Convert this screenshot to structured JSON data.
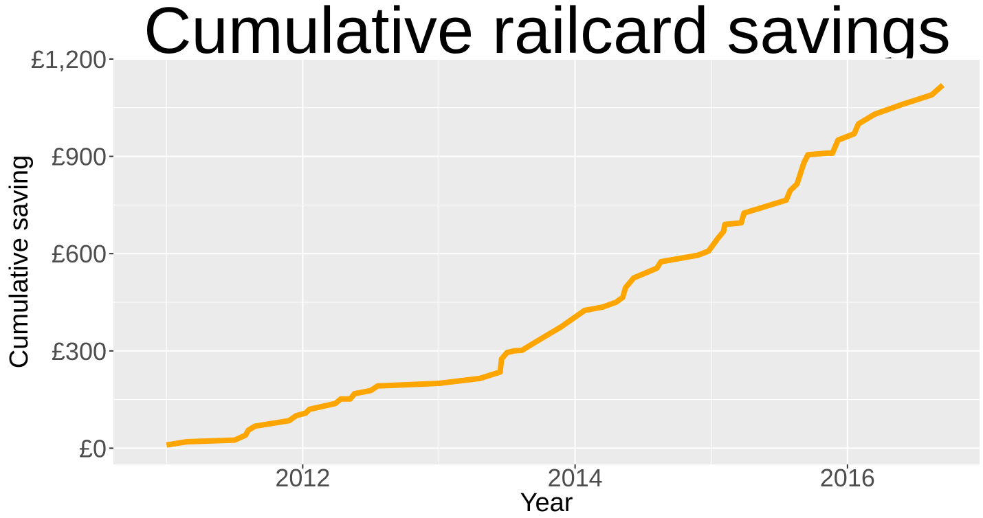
{
  "chart_data": {
    "type": "line",
    "title": "Cumulative railcard savings",
    "xlabel": "Year",
    "ylabel": "Cumulative saving",
    "xlim": [
      2010.61,
      2016.97
    ],
    "ylim": [
      -50,
      1200
    ],
    "x_ticks": [
      2012,
      2014,
      2016
    ],
    "x_tick_labels": [
      "2012",
      "2014",
      "2016"
    ],
    "y_ticks": [
      0,
      300,
      600,
      900,
      1200
    ],
    "y_tick_labels": [
      "£0",
      "£300",
      "£600",
      "£900",
      "£1,200"
    ],
    "grid": true,
    "legend": "none",
    "colors": {
      "line": "#FFA500",
      "panel": "#EBEBEB",
      "grid": "#FFFFFF",
      "tick_text": "#4D4D4D"
    },
    "series": [
      {
        "x": [
          2011.0,
          2011.15,
          2011.5,
          2011.58,
          2011.6,
          2011.65,
          2011.9,
          2011.95,
          2012.02,
          2012.05,
          2012.24,
          2012.28,
          2012.35,
          2012.38,
          2012.5,
          2012.55,
          2012.62,
          2013.0,
          2013.3,
          2013.45,
          2013.46,
          2013.5,
          2013.55,
          2013.61,
          2013.7,
          2013.9,
          2014.07,
          2014.2,
          2014.3,
          2014.35,
          2014.37,
          2014.43,
          2014.6,
          2014.63,
          2014.9,
          2014.98,
          2015.05,
          2015.09,
          2015.1,
          2015.22,
          2015.24,
          2015.55,
          2015.58,
          2015.63,
          2015.68,
          2015.71,
          2015.85,
          2015.89,
          2015.93,
          2016.05,
          2016.08,
          2016.2,
          2016.4,
          2016.55,
          2016.62,
          2016.7
        ],
        "y": [
          10,
          20,
          25,
          40,
          55,
          68,
          85,
          100,
          108,
          120,
          138,
          152,
          152,
          168,
          178,
          192,
          193,
          200,
          215,
          235,
          275,
          295,
          300,
          302,
          325,
          375,
          425,
          435,
          450,
          465,
          495,
          525,
          555,
          575,
          595,
          608,
          648,
          668,
          690,
          695,
          725,
          765,
          795,
          815,
          880,
          905,
          910,
          910,
          950,
          970,
          1000,
          1030,
          1060,
          1080,
          1090,
          1120
        ]
      }
    ]
  }
}
